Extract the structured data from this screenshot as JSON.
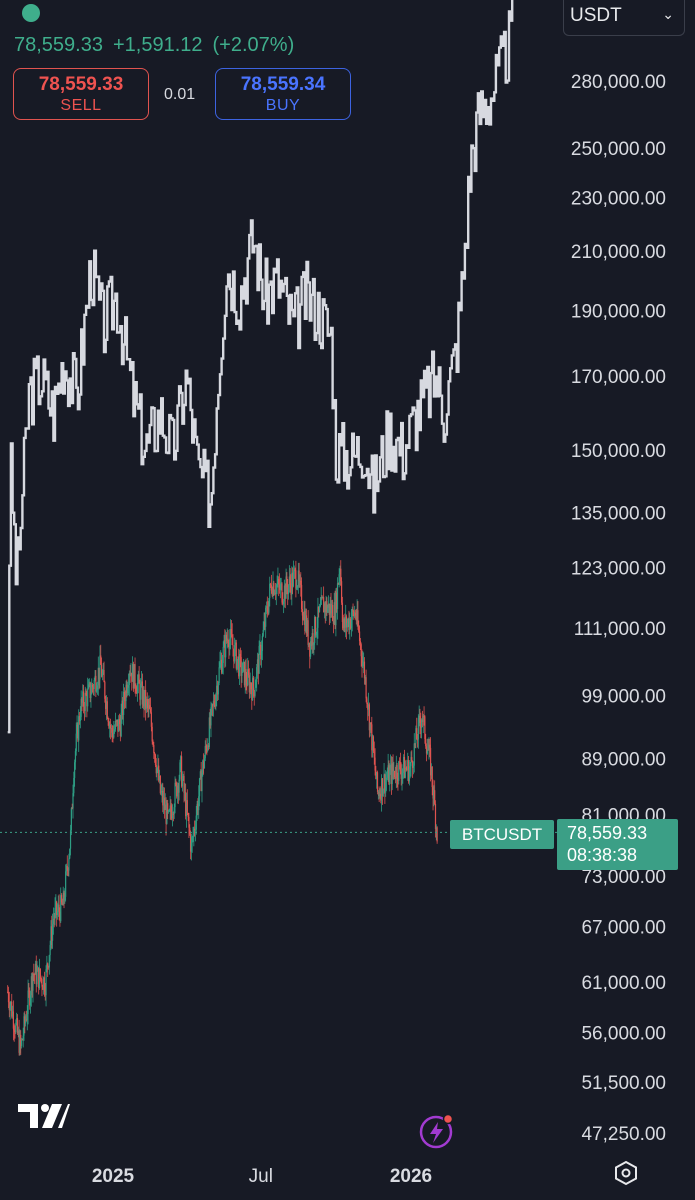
{
  "header": {
    "price": "78,559.33",
    "change": "+1,591.12",
    "change_pct": "(+2.07%)",
    "sell": {
      "price": "78,559.33",
      "label": "SELL"
    },
    "buy": {
      "price": "78,559.34",
      "label": "BUY"
    },
    "spread": "0.01",
    "currency": "USDT"
  },
  "symbol_label": "BTCUSDT",
  "price_label": {
    "price": "78,559.33",
    "countdown": "08:38:38"
  },
  "colors": {
    "up": "#2e9e84",
    "down": "#e0534f",
    "accent": "#3b9f86",
    "overlay": "#d7d9e0",
    "background": "#171a25"
  },
  "icons": {
    "logo": "tradingview-logo-icon",
    "bolt": "lightning-bolt-icon",
    "settings": "settings-hexagon-icon"
  },
  "chart_data": {
    "type": "line",
    "scale": "log",
    "ylim": [
      45000,
      330000
    ],
    "y_ticks": [
      {
        "v": 280000,
        "label": "280,000.00"
      },
      {
        "v": 250000,
        "label": "250,000.00"
      },
      {
        "v": 230000,
        "label": "230,000.00"
      },
      {
        "v": 210000,
        "label": "210,000.00"
      },
      {
        "v": 190000,
        "label": "190,000.00"
      },
      {
        "v": 170000,
        "label": "170,000.00"
      },
      {
        "v": 150000,
        "label": "150,000.00"
      },
      {
        "v": 135000,
        "label": "135,000.00"
      },
      {
        "v": 123000,
        "label": "123,000.00"
      },
      {
        "v": 111000,
        "label": "111,000.00"
      },
      {
        "v": 99000,
        "label": "99,000.00"
      },
      {
        "v": 89000,
        "label": "89,000.00"
      },
      {
        "v": 81000,
        "label": "81,000.00"
      },
      {
        "v": 73000,
        "label": "73,000.00"
      },
      {
        "v": 67000,
        "label": "67,000.00"
      },
      {
        "v": 61000,
        "label": "61,000.00"
      },
      {
        "v": 56000,
        "label": "56,000.00"
      },
      {
        "v": 51500,
        "label": "51,500.00"
      },
      {
        "v": 47250,
        "label": "47,250.00"
      }
    ],
    "x_ticks": [
      {
        "date": "2025-01-01",
        "label": "2025"
      },
      {
        "date": "2025-07-01",
        "label": "Jul"
      },
      {
        "date": "2026-01-01",
        "label": "2026"
      }
    ],
    "last_price": 78559.33,
    "series": [
      {
        "kind": "candlestick",
        "points": [
          [
            "2024-08-25",
            60000
          ],
          [
            "2024-09-10",
            54500
          ],
          [
            "2024-09-25",
            62000
          ],
          [
            "2024-10-10",
            61000
          ],
          [
            "2024-10-20",
            68000
          ],
          [
            "2024-11-01",
            69500
          ],
          [
            "2024-11-10",
            78000
          ],
          [
            "2024-11-14",
            88000
          ],
          [
            "2024-11-22",
            97000
          ],
          [
            "2024-12-05",
            100000
          ],
          [
            "2024-12-17",
            104000
          ],
          [
            "2024-12-30",
            93000
          ],
          [
            "2025-01-10",
            94500
          ],
          [
            "2025-01-21",
            104000
          ],
          [
            "2025-02-03",
            100000
          ],
          [
            "2025-02-15",
            96000
          ],
          [
            "2025-02-28",
            84000
          ],
          [
            "2025-03-10",
            80000
          ],
          [
            "2025-03-25",
            87500
          ],
          [
            "2025-04-07",
            76500
          ],
          [
            "2025-04-20",
            87000
          ],
          [
            "2025-05-01",
            95000
          ],
          [
            "2025-05-12",
            104000
          ],
          [
            "2025-05-22",
            110000
          ],
          [
            "2025-06-05",
            104000
          ],
          [
            "2025-06-22",
            100000
          ],
          [
            "2025-07-01",
            107000
          ],
          [
            "2025-07-14",
            120000
          ],
          [
            "2025-07-28",
            118000
          ],
          [
            "2025-08-14",
            121500
          ],
          [
            "2025-08-30",
            108000
          ],
          [
            "2025-09-15",
            115500
          ],
          [
            "2025-09-30",
            114000
          ],
          [
            "2025-10-06",
            124000
          ],
          [
            "2025-10-10",
            111000
          ],
          [
            "2025-10-25",
            114000
          ],
          [
            "2025-11-05",
            103000
          ],
          [
            "2025-11-21",
            84000
          ],
          [
            "2025-12-01",
            86000
          ],
          [
            "2025-12-15",
            87500
          ],
          [
            "2025-12-31",
            87500
          ],
          [
            "2026-01-14",
            96000
          ],
          [
            "2026-01-25",
            88000
          ],
          [
            "2026-02-02",
            78559.33
          ]
        ]
      },
      {
        "kind": "overlay-line",
        "points": [
          [
            "2024-08-25",
            95000
          ],
          [
            "2024-08-28",
            148000
          ],
          [
            "2024-09-05",
            120000
          ],
          [
            "2024-09-20",
            165000
          ],
          [
            "2024-10-05",
            170000
          ],
          [
            "2024-10-20",
            160000
          ],
          [
            "2024-11-01",
            175000
          ],
          [
            "2024-11-18",
            165000
          ],
          [
            "2024-12-05",
            205000
          ],
          [
            "2024-12-20",
            185000
          ],
          [
            "2025-01-05",
            195000
          ],
          [
            "2025-01-25",
            165000
          ],
          [
            "2025-02-10",
            150000
          ],
          [
            "2025-02-28",
            160000
          ],
          [
            "2025-03-15",
            150000
          ],
          [
            "2025-04-01",
            170000
          ],
          [
            "2025-04-15",
            145000
          ],
          [
            "2025-05-01",
            138000
          ],
          [
            "2025-05-08",
            165000
          ],
          [
            "2025-05-20",
            205000
          ],
          [
            "2025-06-05",
            195000
          ],
          [
            "2025-06-22",
            215000
          ],
          [
            "2025-07-05",
            195000
          ],
          [
            "2025-07-22",
            200000
          ],
          [
            "2025-08-10",
            185000
          ],
          [
            "2025-08-25",
            195000
          ],
          [
            "2025-09-10",
            190000
          ],
          [
            "2025-09-25",
            182000
          ],
          [
            "2025-10-01",
            150000
          ],
          [
            "2025-10-20",
            148000
          ],
          [
            "2025-11-05",
            152000
          ],
          [
            "2025-11-15",
            140000
          ],
          [
            "2025-12-05",
            155000
          ],
          [
            "2025-12-22",
            150000
          ],
          [
            "2026-01-05",
            158000
          ],
          [
            "2026-01-20",
            165000
          ],
          [
            "2026-02-01",
            170000
          ],
          [
            "2026-02-10",
            160000
          ],
          [
            "2026-02-25",
            178000
          ],
          [
            "2026-03-05",
            200000
          ],
          [
            "2026-03-15",
            245000
          ],
          [
            "2026-03-25",
            265000
          ],
          [
            "2026-04-10",
            275000
          ],
          [
            "2026-04-25",
            290000
          ],
          [
            "2026-05-05",
            305000
          ]
        ]
      }
    ]
  }
}
